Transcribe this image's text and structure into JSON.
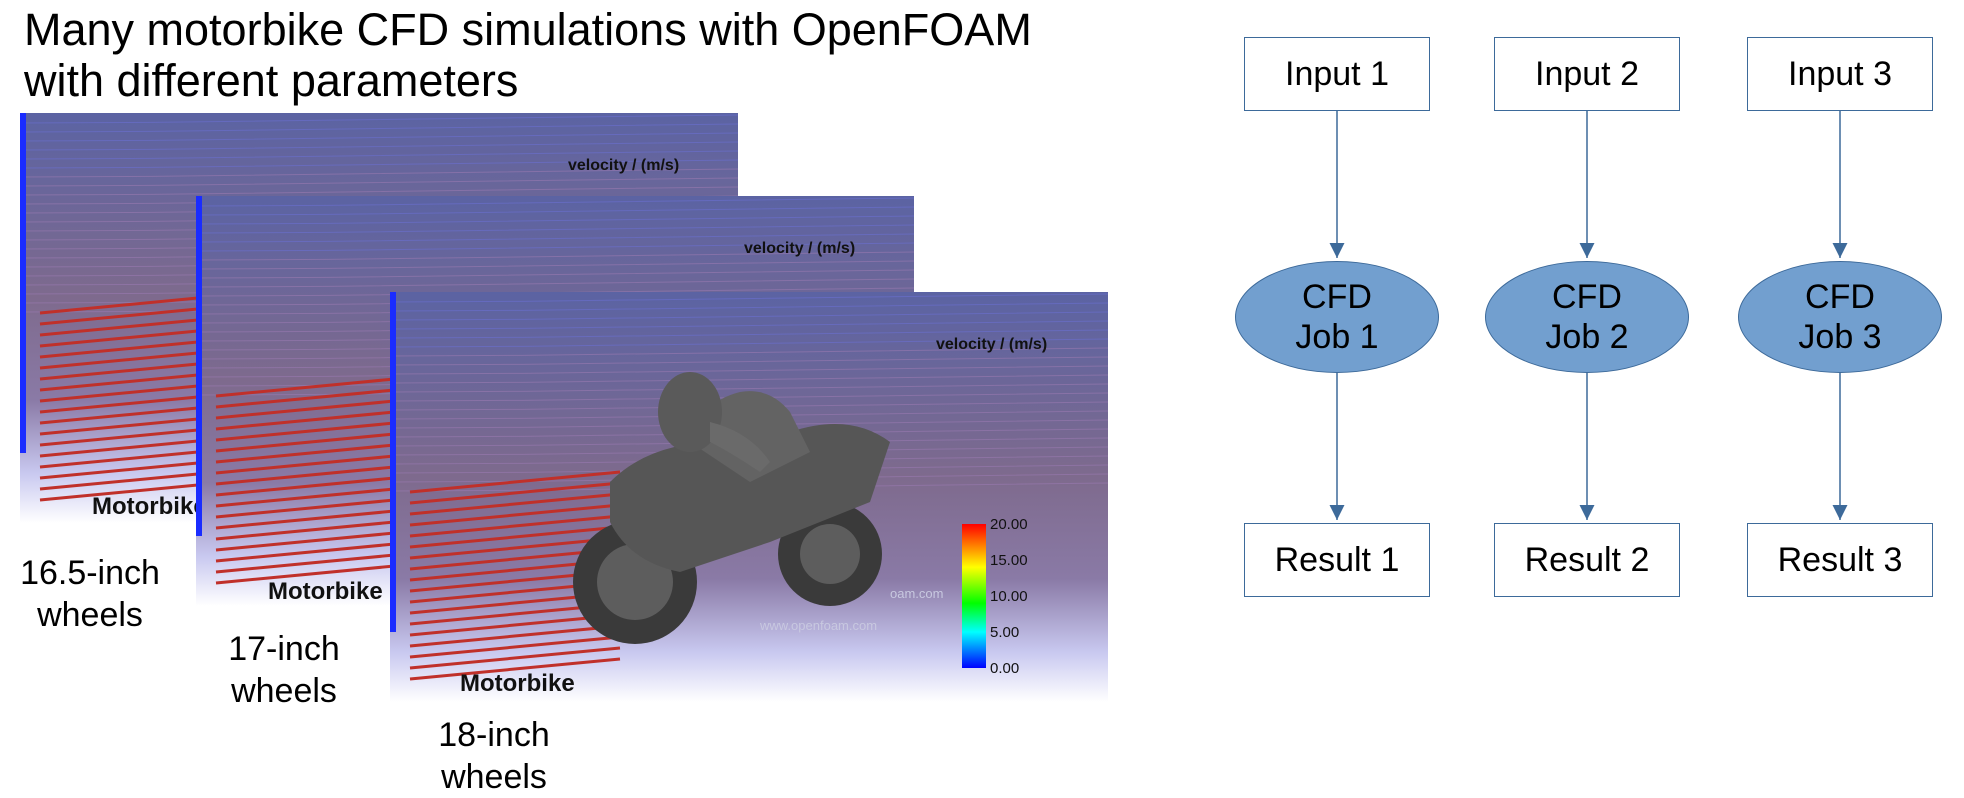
{
  "title": "Many motorbike CFD simulations with OpenFOAM\nwith different parameters",
  "simulations": [
    {
      "velocity_label": "velocity / (m/s)",
      "brand": "Motorbike",
      "caption": "16.5-inch\nwheels"
    },
    {
      "velocity_label": "velocity / (m/s)",
      "brand": "Motorbike",
      "caption": "17-inch\nwheels"
    },
    {
      "velocity_label": "velocity / (m/s)",
      "brand": "Motorbike",
      "caption": "18-inch\nwheels"
    }
  ],
  "watermark": "www.openfoam.com",
  "watermark_fragment": "oam.com",
  "colorbar": {
    "ticks": [
      "20.00",
      "15.00",
      "10.00",
      "5.00",
      "0.00"
    ],
    "colors": [
      "#ff0000",
      "#ffff00",
      "#00ff00",
      "#00ffff",
      "#0000ff"
    ]
  },
  "diagram": {
    "inputs": [
      "Input 1",
      "Input 2",
      "Input 3"
    ],
    "jobs": [
      "CFD\nJob 1",
      "CFD\nJob 2",
      "CFD\nJob 3"
    ],
    "results": [
      "Result 1",
      "Result 2",
      "Result 3"
    ],
    "colors": {
      "job_fill": "#729fcf",
      "border": "#3d6a9a",
      "arrow": "#3d6a9a"
    }
  }
}
